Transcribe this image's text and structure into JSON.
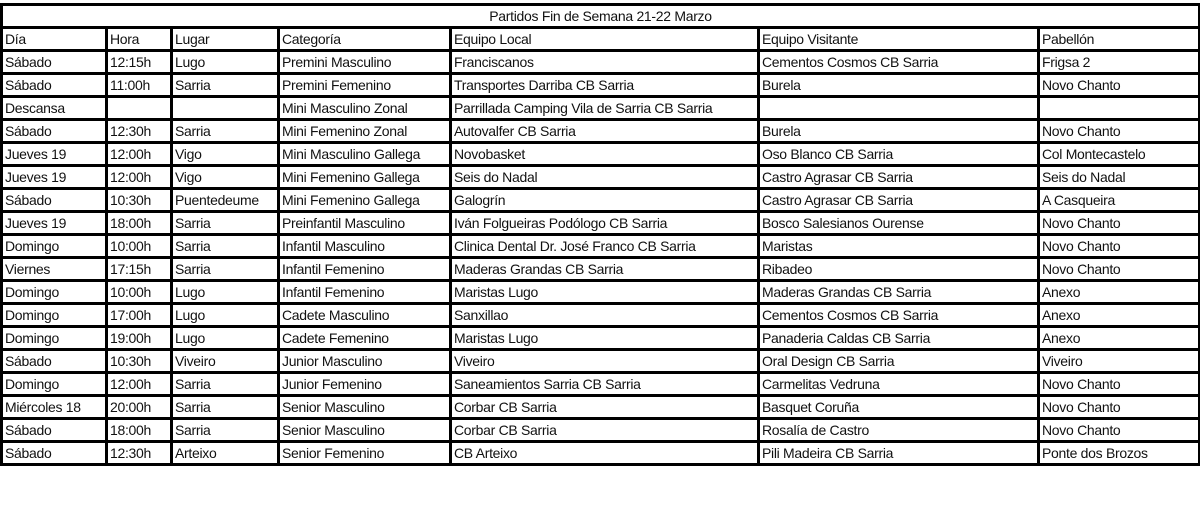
{
  "title": "Partidos Fin de Semana 21-22 Marzo",
  "headers": [
    "Día",
    "Hora",
    "Lugar",
    "Categoría",
    "Equipo Local",
    "Equipo Visitante",
    "Pabellón"
  ],
  "rows": [
    [
      "Sábado",
      "12:15h",
      "Lugo",
      "Premini Masculino",
      "Franciscanos",
      "Cementos Cosmos CB Sarria",
      "Frigsa 2"
    ],
    [
      "Sábado",
      "11:00h",
      "Sarria",
      "Premini Femenino",
      "Transportes Darriba CB Sarria",
      "Burela",
      "Novo Chanto"
    ],
    [
      "Descansa",
      "",
      "",
      "Mini Masculino Zonal",
      "Parrillada Camping Vila de Sarria CB Sarria",
      "",
      ""
    ],
    [
      "Sábado",
      "12:30h",
      "Sarria",
      "Mini Femenino Zonal",
      "Autovalfer CB Sarria",
      "Burela",
      "Novo Chanto"
    ],
    [
      "Jueves 19",
      "12:00h",
      "Vigo",
      "Mini Masculino Gallega",
      "Novobasket",
      "Oso Blanco CB Sarria",
      "Col Montecastelo"
    ],
    [
      "Jueves 19",
      "12:00h",
      "Vigo",
      "Mini Femenino Gallega",
      "Seis do Nadal",
      "Castro Agrasar CB Sarria",
      "Seis do Nadal"
    ],
    [
      "Sábado",
      "10:30h",
      "Puentedeume",
      "Mini Femenino Gallega",
      "Galogrín",
      "Castro Agrasar CB Sarria",
      "A Casqueira"
    ],
    [
      "Jueves 19",
      "18:00h",
      "Sarria",
      "Preinfantil Masculino",
      "Iván Folgueiras Podólogo CB Sarria",
      "Bosco Salesianos Ourense",
      "Novo Chanto"
    ],
    [
      "Domingo",
      "10:00h",
      "Sarria",
      "Infantil Masculino",
      "Clinica Dental Dr. José Franco CB Sarria",
      "Maristas",
      "Novo Chanto"
    ],
    [
      "Viernes",
      "17:15h",
      "Sarria",
      "Infantil Femenino",
      "Maderas Grandas CB Sarria",
      "Ribadeo",
      "Novo Chanto"
    ],
    [
      "Domingo",
      "10:00h",
      "Lugo",
      "Infantil Femenino",
      "Maristas Lugo",
      "Maderas Grandas CB Sarria",
      "Anexo"
    ],
    [
      "Domingo",
      "17:00h",
      "Lugo",
      "Cadete Masculino",
      "Sanxillao",
      "Cementos Cosmos CB Sarria",
      "Anexo"
    ],
    [
      "Domingo",
      "19:00h",
      "Lugo",
      "Cadete Femenino",
      "Maristas Lugo",
      "Panaderia Caldas CB Sarria",
      "Anexo"
    ],
    [
      "Sábado",
      "10:30h",
      "Viveiro",
      "Junior Masculino",
      "Viveiro",
      "Oral Design CB Sarria",
      "Viveiro"
    ],
    [
      "Domingo",
      "12:00h",
      "Sarria",
      "Junior Femenino",
      "Saneamientos Sarria CB Sarria",
      "Carmelitas Vedruna",
      "Novo Chanto"
    ],
    [
      "Miércoles 18",
      "20:00h",
      "Sarria",
      "Senior Masculino",
      "Corbar CB Sarria",
      "Basquet Coruña",
      "Novo Chanto"
    ],
    [
      "Sábado",
      "18:00h",
      "Sarria",
      "Senior Masculino",
      "Corbar CB Sarria",
      "Rosalía de Castro",
      "Novo Chanto"
    ],
    [
      "Sábado",
      "12:30h",
      "Arteixo",
      "Senior Femenino",
      "CB Arteixo",
      "Pili Madeira CB Sarria",
      "Ponte dos Brozos"
    ]
  ]
}
